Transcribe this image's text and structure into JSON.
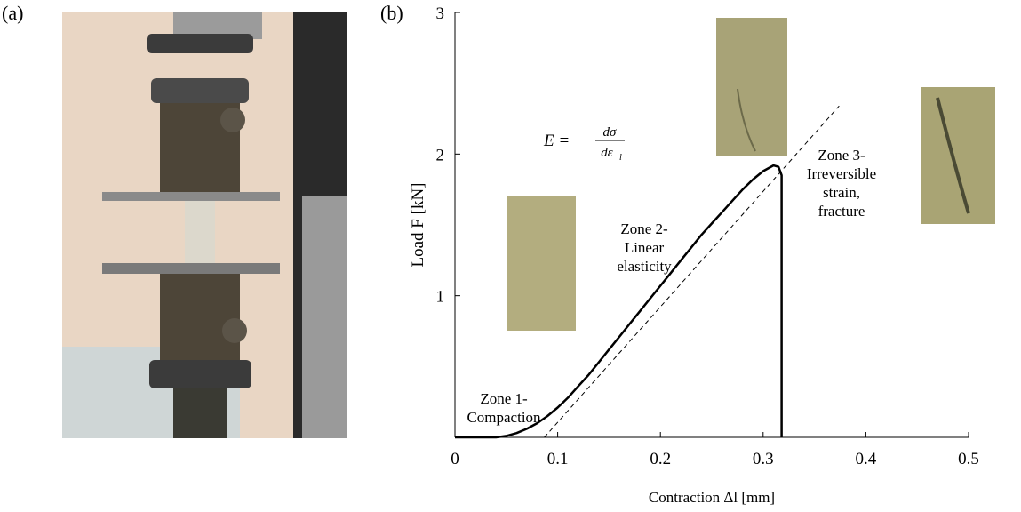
{
  "chart_data": {
    "type": "line",
    "panel_labels": [
      "(a)",
      "(b)"
    ],
    "xlabel": "Contraction  Δl [mm]",
    "ylabel": "Load  F [kN]",
    "x": [
      0,
      0.02,
      0.04,
      0.05,
      0.06,
      0.07,
      0.08,
      0.09,
      0.1,
      0.11,
      0.12,
      0.13,
      0.14,
      0.15,
      0.16,
      0.17,
      0.18,
      0.19,
      0.2,
      0.21,
      0.22,
      0.23,
      0.24,
      0.25,
      0.26,
      0.27,
      0.28,
      0.29,
      0.3,
      0.31,
      0.315,
      0.318,
      0.318
    ],
    "series": [
      {
        "color": "#000000",
        "values": [
          0,
          0,
          0,
          0.01,
          0.03,
          0.06,
          0.1,
          0.15,
          0.21,
          0.28,
          0.36,
          0.44,
          0.53,
          0.62,
          0.71,
          0.8,
          0.89,
          0.98,
          1.07,
          1.16,
          1.25,
          1.34,
          1.43,
          1.51,
          1.59,
          1.67,
          1.75,
          1.82,
          1.88,
          1.92,
          1.91,
          1.85,
          0
        ]
      }
    ],
    "tangent": {
      "x": [
        0.087,
        0.374
      ],
      "y": [
        0,
        2.34
      ]
    },
    "xlim": [
      0,
      0.5
    ],
    "ylim": [
      0,
      3
    ],
    "xticks": [
      0,
      0.1,
      0.2,
      0.3,
      0.4,
      0.5
    ],
    "yticks": [
      1,
      2,
      3
    ],
    "zones": [
      {
        "lines": [
          "Zone 1-",
          "Compaction"
        ]
      },
      {
        "lines": [
          "Zone 2-",
          "Linear",
          "elasticity"
        ]
      },
      {
        "lines": [
          "Zone 3-",
          "Irreversible",
          "strain,",
          "fracture"
        ]
      }
    ],
    "equation": {
      "lhs": "E =",
      "num": "dσ",
      "den": "dε",
      "den_sub": "l"
    }
  }
}
